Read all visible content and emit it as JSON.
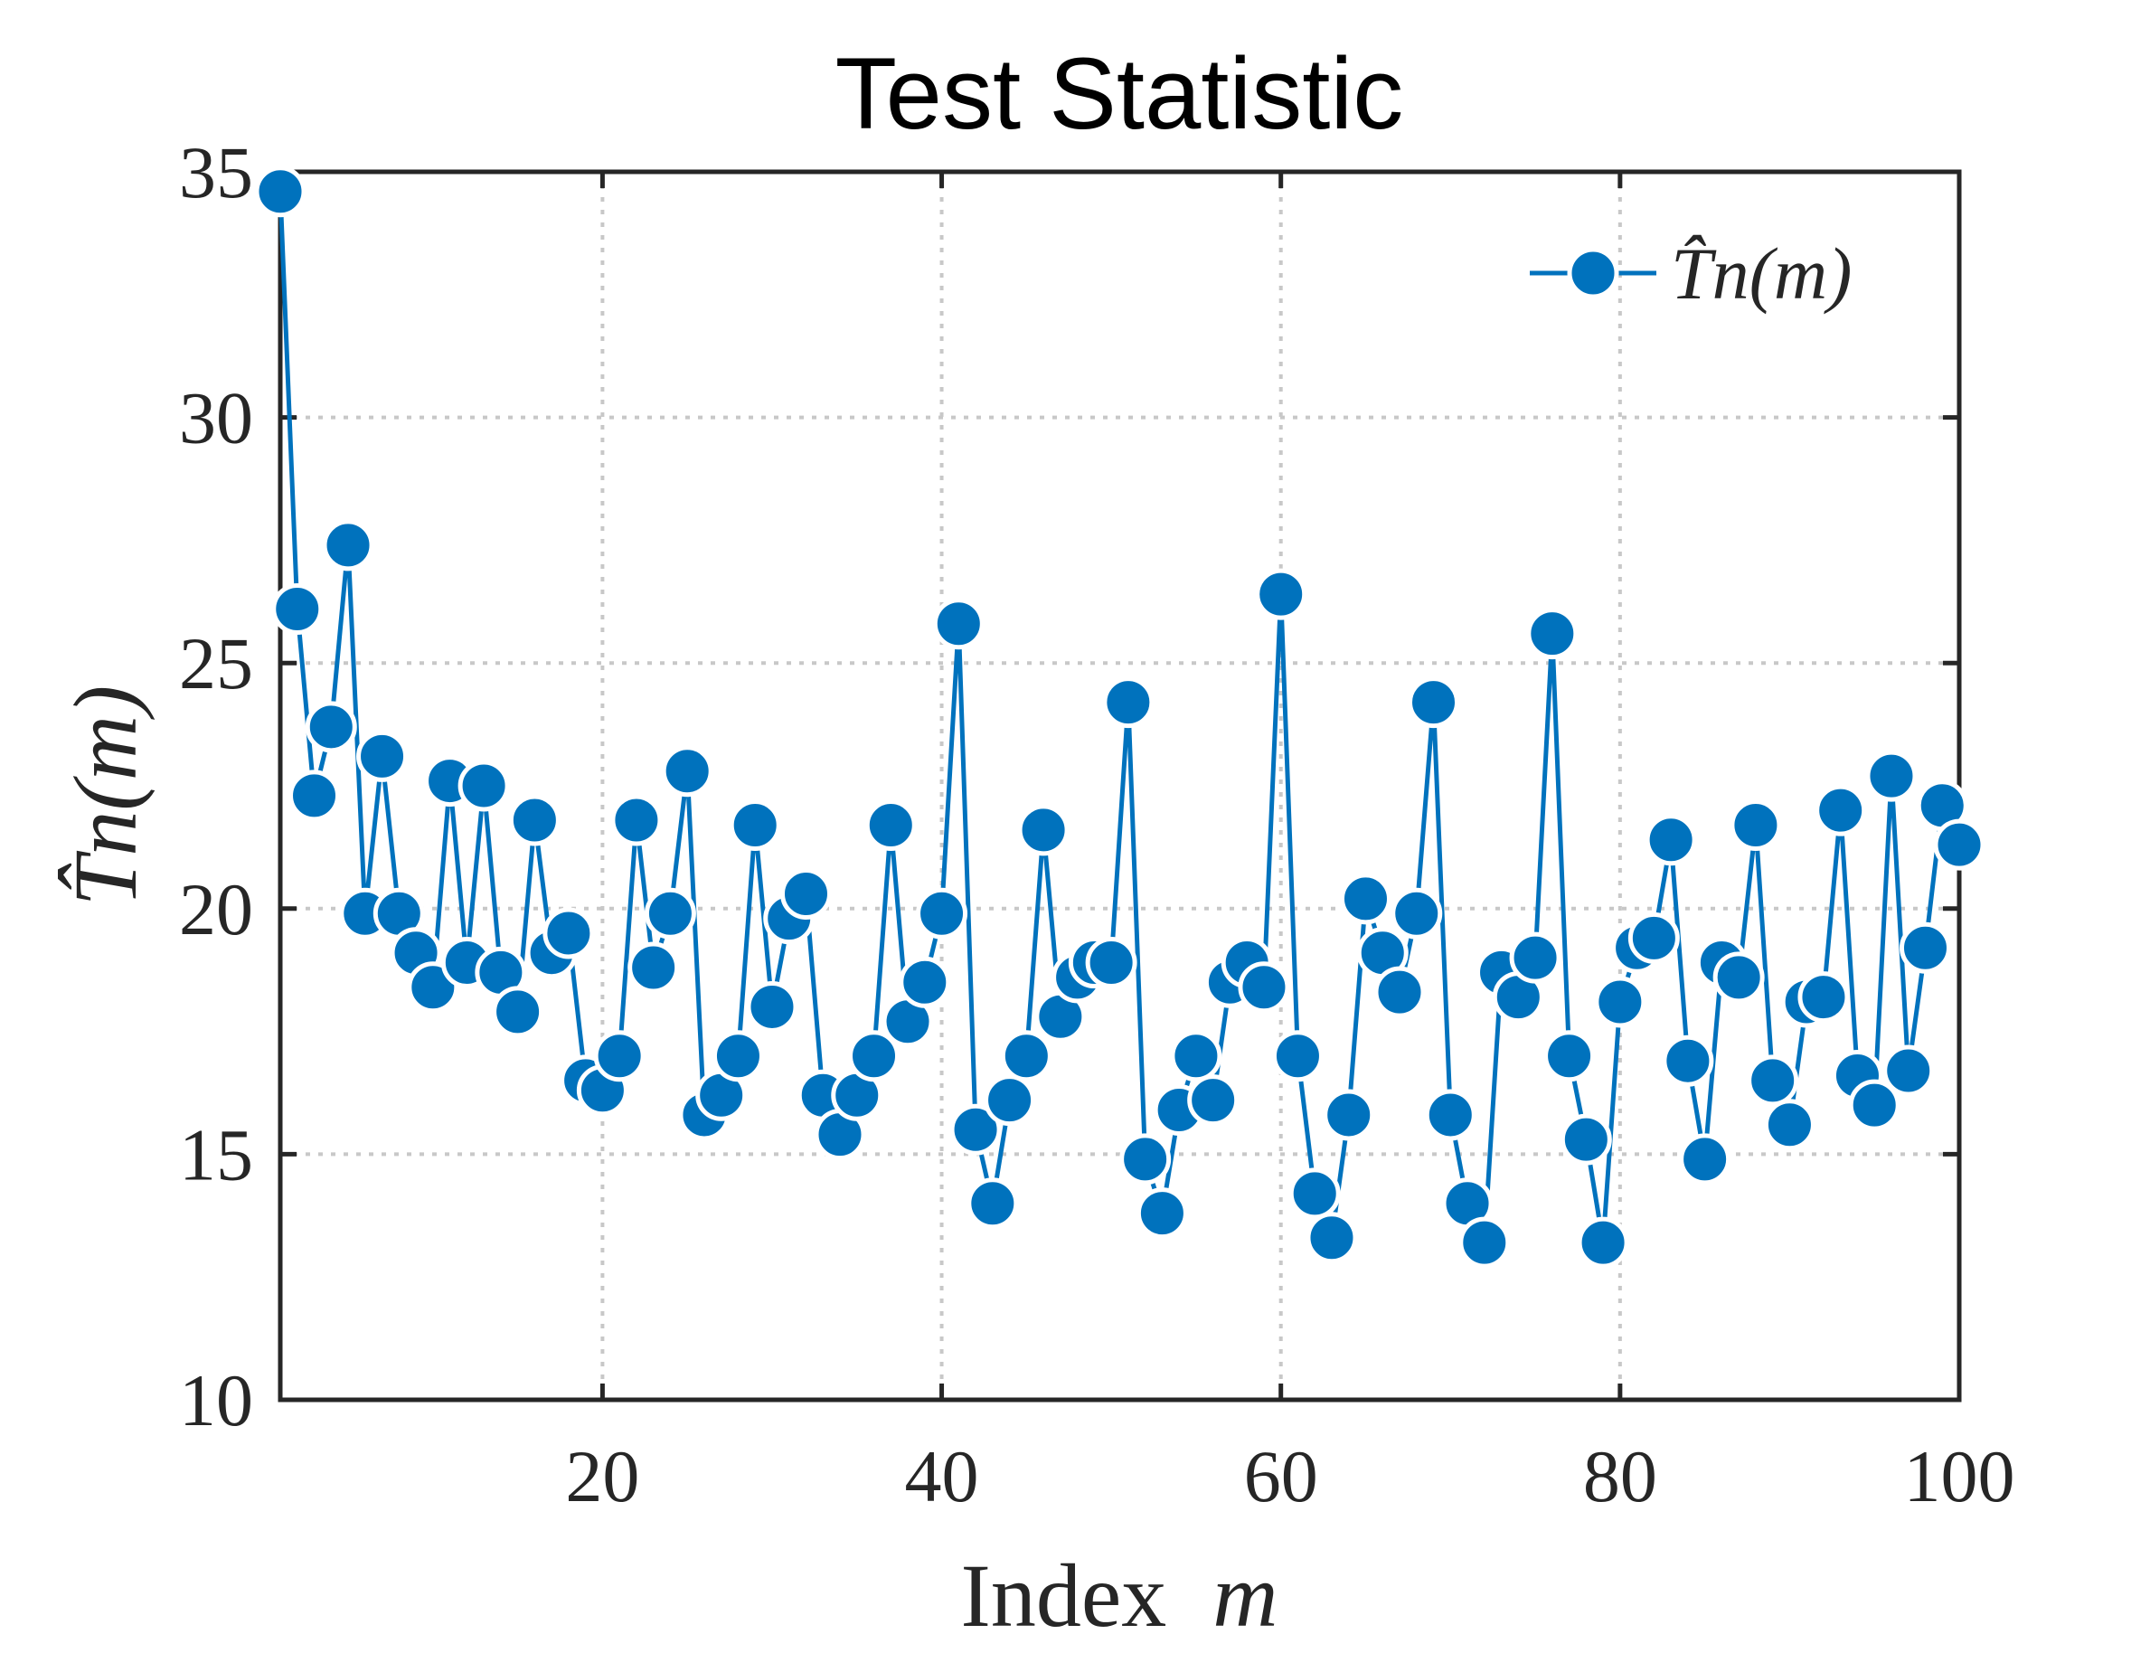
{
  "chart_data": {
    "type": "line",
    "title": "Test Statistic",
    "xlabel": "Index",
    "xlabel_var": "m",
    "ylabel": "T̂n(m)",
    "xlim": [
      1,
      100
    ],
    "ylim": [
      10,
      35
    ],
    "xticks": [
      20,
      40,
      60,
      80,
      100
    ],
    "yticks": [
      10,
      15,
      20,
      25,
      30,
      35
    ],
    "grid": true,
    "legend_position": "top-right",
    "series": [
      {
        "name": "T̂n(m)",
        "color": "#0072BD",
        "marker": "circle",
        "x": [
          1,
          2,
          3,
          4,
          5,
          6,
          7,
          8,
          9,
          10,
          11,
          12,
          13,
          14,
          15,
          16,
          17,
          18,
          19,
          20,
          21,
          22,
          23,
          24,
          25,
          26,
          27,
          28,
          29,
          30,
          31,
          32,
          33,
          34,
          35,
          36,
          37,
          38,
          39,
          40,
          41,
          42,
          43,
          44,
          45,
          46,
          47,
          48,
          49,
          50,
          51,
          52,
          53,
          54,
          55,
          56,
          57,
          58,
          59,
          60,
          61,
          62,
          63,
          64,
          65,
          66,
          67,
          68,
          69,
          70,
          71,
          72,
          73,
          74,
          75,
          76,
          77,
          78,
          79,
          80,
          81,
          82,
          83,
          84,
          85,
          86,
          87,
          88,
          89,
          90,
          91,
          92,
          93,
          94,
          95,
          96,
          97,
          98,
          99,
          100
        ],
        "values": [
          34.6,
          26.1,
          22.3,
          23.7,
          27.4,
          19.9,
          23.1,
          19.9,
          19.1,
          18.4,
          22.6,
          18.9,
          22.5,
          18.7,
          17.9,
          21.8,
          19.1,
          19.5,
          16.5,
          16.3,
          17.0,
          21.8,
          18.8,
          19.9,
          22.8,
          15.8,
          16.2,
          17.0,
          21.7,
          18.0,
          19.8,
          20.3,
          16.2,
          15.4,
          16.2,
          17.0,
          21.7,
          17.7,
          18.5,
          19.9,
          25.8,
          15.5,
          14.0,
          16.1,
          17.0,
          21.6,
          17.8,
          18.6,
          18.9,
          18.9,
          24.2,
          14.9,
          13.8,
          15.9,
          17.0,
          16.1,
          18.5,
          18.9,
          18.4,
          26.4,
          17.0,
          14.2,
          13.3,
          15.8,
          20.2,
          19.1,
          18.3,
          19.9,
          24.2,
          15.8,
          14.0,
          13.2,
          18.7,
          18.2,
          19.0,
          25.6,
          17.0,
          15.3,
          13.2,
          18.1,
          19.2,
          19.4,
          21.4,
          16.9,
          14.9,
          18.9,
          18.6,
          21.7,
          16.5,
          15.6,
          18.1,
          18.2,
          22.0,
          16.6,
          16.0,
          22.7,
          16.7,
          19.2,
          22.1,
          21.3
        ]
      }
    ]
  }
}
